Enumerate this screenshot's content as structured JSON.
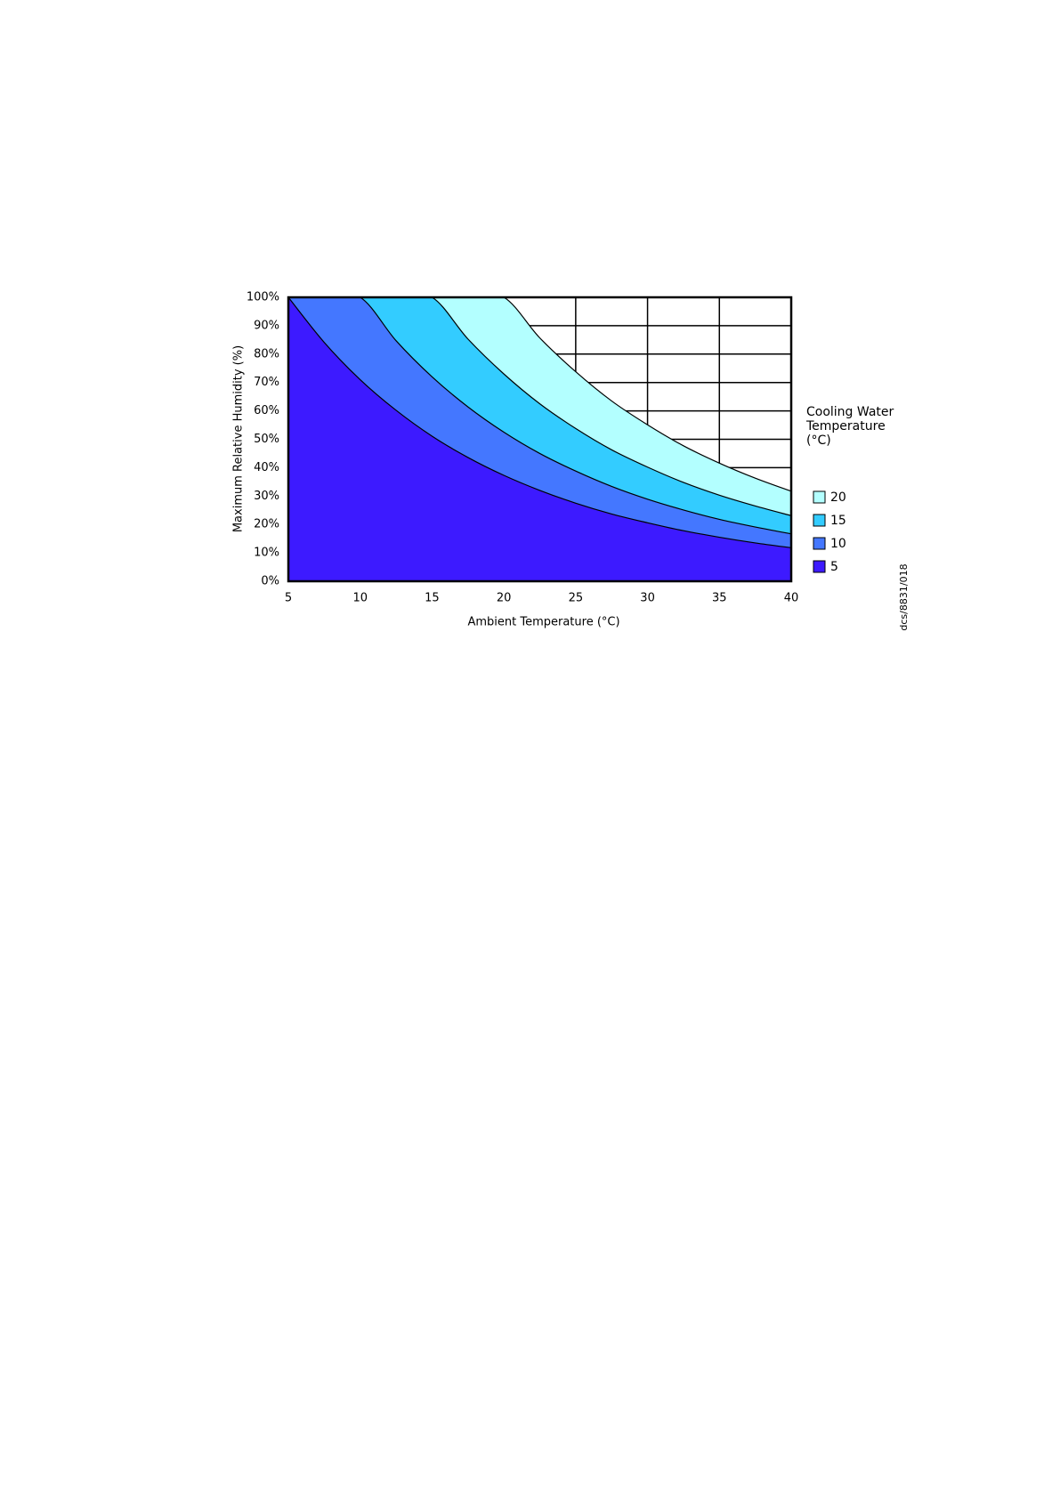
{
  "chart_data": {
    "type": "area",
    "x_label": "Ambient Temperature (°C)",
    "y_label": "Maximum Relative Humidity (%)",
    "legend_title": "Cooling Water Temperature (°C)",
    "annotation": "dcs/8831/018",
    "x": [
      5,
      7.5,
      10,
      12.5,
      15,
      17.5,
      20,
      22.5,
      25,
      27.5,
      30,
      32.5,
      35,
      37.5,
      40
    ],
    "series": [
      {
        "name": "20",
        "color": "#b3ffff",
        "values": [
          100,
          100,
          100,
          100,
          100,
          100,
          100,
          85.7,
          73.8,
          63.5,
          55.1,
          47.7,
          41.6,
          36.3,
          31.7
        ]
      },
      {
        "name": "15",
        "color": "#33ccff",
        "values": [
          100,
          100,
          100,
          100,
          100,
          85.3,
          73.0,
          62.5,
          53.8,
          46.3,
          40.2,
          34.8,
          30.3,
          26.5,
          23.1
        ]
      },
      {
        "name": "10",
        "color": "#4477ff",
        "values": [
          100,
          100,
          100,
          84.7,
          72.0,
          61.4,
          52.5,
          45.0,
          38.8,
          33.4,
          28.9,
          25.1,
          21.8,
          19.1,
          16.7
        ]
      },
      {
        "name": "5",
        "color": "#3d1aff",
        "values": [
          100,
          84.1,
          71.0,
          60.2,
          51.1,
          43.6,
          37.3,
          32.0,
          27.5,
          23.7,
          20.6,
          17.8,
          15.5,
          13.5,
          11.8
        ]
      }
    ],
    "xlim": [
      5,
      40
    ],
    "xticks": [
      5,
      10,
      15,
      20,
      25,
      30,
      35,
      40
    ],
    "ylim": [
      0,
      100
    ],
    "yticks": [
      {
        "value": 0,
        "label": "0%"
      },
      {
        "value": 10,
        "label": "10%"
      },
      {
        "value": 20,
        "label": "20%"
      },
      {
        "value": 30,
        "label": "30%"
      },
      {
        "value": 40,
        "label": "40%"
      },
      {
        "value": 50,
        "label": "50%"
      },
      {
        "value": 60,
        "label": "60%"
      },
      {
        "value": 70,
        "label": "70%"
      },
      {
        "value": 80,
        "label": "80%"
      },
      {
        "value": 90,
        "label": "90%"
      },
      {
        "value": 100,
        "label": "100%"
      }
    ],
    "grid": true
  }
}
